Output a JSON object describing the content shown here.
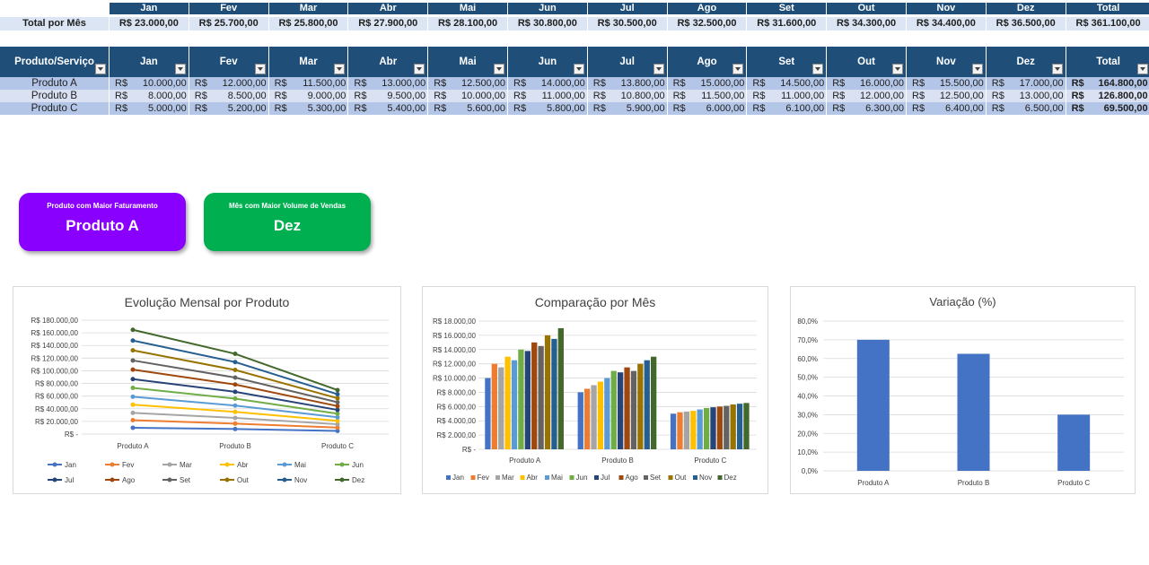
{
  "summary": {
    "label": "Total por Mês",
    "months": [
      "Jan",
      "Fev",
      "Mar",
      "Abr",
      "Mai",
      "Jun",
      "Jul",
      "Ago",
      "Set",
      "Out",
      "Nov",
      "Dez",
      "Total"
    ],
    "values": [
      "R$ 23.000,00",
      "R$ 25.700,00",
      "R$ 25.800,00",
      "R$ 27.900,00",
      "R$ 28.100,00",
      "R$ 30.800,00",
      "R$ 30.500,00",
      "R$ 32.500,00",
      "R$ 31.600,00",
      "R$ 34.300,00",
      "R$ 34.400,00",
      "R$ 36.500,00",
      "R$ 361.100,00"
    ]
  },
  "table": {
    "headers": [
      "Produto/Serviço",
      "Jan",
      "Fev",
      "Mar",
      "Abr",
      "Mai",
      "Jun",
      "Jul",
      "Ago",
      "Set",
      "Out",
      "Nov",
      "Dez",
      "Total"
    ],
    "currency": "R$",
    "rows": [
      {
        "product": "Produto A",
        "values": [
          "10.000,00",
          "12.000,00",
          "11.500,00",
          "13.000,00",
          "12.500,00",
          "14.000,00",
          "13.800,00",
          "15.000,00",
          "14.500,00",
          "16.000,00",
          "15.500,00",
          "17.000,00"
        ],
        "total": "164.800,00"
      },
      {
        "product": "Produto B",
        "values": [
          "8.000,00",
          "8.500,00",
          "9.000,00",
          "9.500,00",
          "10.000,00",
          "11.000,00",
          "10.800,00",
          "11.500,00",
          "11.000,00",
          "12.000,00",
          "12.500,00",
          "13.000,00"
        ],
        "total": "126.800,00"
      },
      {
        "product": "Produto C",
        "values": [
          "5.000,00",
          "5.200,00",
          "5.300,00",
          "5.400,00",
          "5.600,00",
          "5.800,00",
          "5.900,00",
          "6.000,00",
          "6.100,00",
          "6.300,00",
          "6.400,00",
          "6.500,00"
        ],
        "total": "69.500,00"
      }
    ]
  },
  "kpis": {
    "top_product": {
      "title": "Produto com Maior Faturamento",
      "value": "Produto A",
      "color": "#8a00ff"
    },
    "top_month": {
      "title": "Mês com Maior Volume de Vendas",
      "value": "Dez",
      "color": "#00b050"
    }
  },
  "chart_data": [
    {
      "type": "line",
      "title": "Evolução Mensal por Produto",
      "categories": [
        "Produto A",
        "Produto B",
        "Produto C"
      ],
      "y_ticks": [
        "R$ -",
        "R$ 20.000,00",
        "R$ 40.000,00",
        "R$ 60.000,00",
        "R$ 80.000,00",
        "R$ 100.000,00",
        "R$ 120.000,00",
        "R$ 140.000,00",
        "R$ 160.000,00",
        "R$ 180.000,00"
      ],
      "ylim": [
        0,
        180000
      ],
      "stacked": true,
      "legend_position": "bottom",
      "series": [
        {
          "name": "Jan",
          "values": [
            10000,
            8000,
            5000
          ],
          "color": "#4472c4"
        },
        {
          "name": "Fev",
          "values": [
            12000,
            8500,
            5200
          ],
          "color": "#ed7d31"
        },
        {
          "name": "Mar",
          "values": [
            11500,
            9000,
            5300
          ],
          "color": "#a5a5a5"
        },
        {
          "name": "Abr",
          "values": [
            13000,
            9500,
            5400
          ],
          "color": "#ffc000"
        },
        {
          "name": "Mai",
          "values": [
            12500,
            10000,
            5600
          ],
          "color": "#5b9bd5"
        },
        {
          "name": "Jun",
          "values": [
            14000,
            11000,
            5800
          ],
          "color": "#70ad47"
        },
        {
          "name": "Jul",
          "values": [
            13800,
            10800,
            5900
          ],
          "color": "#264478"
        },
        {
          "name": "Ago",
          "values": [
            15000,
            11500,
            6000
          ],
          "color": "#9e480e"
        },
        {
          "name": "Set",
          "values": [
            14500,
            11000,
            6100
          ],
          "color": "#636363"
        },
        {
          "name": "Out",
          "values": [
            16000,
            12000,
            6300
          ],
          "color": "#997300"
        },
        {
          "name": "Nov",
          "values": [
            15500,
            12500,
            6400
          ],
          "color": "#255e91"
        },
        {
          "name": "Dez",
          "values": [
            17000,
            13000,
            6500
          ],
          "color": "#43682b"
        }
      ]
    },
    {
      "type": "bar",
      "title": "Comparação por Mês",
      "categories": [
        "Produto A",
        "Produto B",
        "Produto C"
      ],
      "y_ticks": [
        "R$ -",
        "R$ 2.000,00",
        "R$ 4.000,00",
        "R$ 6.000,00",
        "R$ 8.000,00",
        "R$ 10.000,00",
        "R$ 12.000,00",
        "R$ 14.000,00",
        "R$ 16.000,00",
        "R$ 18.000,00"
      ],
      "ylim": [
        0,
        18000
      ],
      "legend_position": "bottom",
      "series_ref": "same as Evolução Mensal por Produto series (Jan–Dez)"
    },
    {
      "type": "bar",
      "title": "Variação (%)",
      "categories": [
        "Produto A",
        "Produto B",
        "Produto C"
      ],
      "values": [
        70,
        62.5,
        30
      ],
      "y_ticks": [
        "0,0%",
        "10,0%",
        "20,0%",
        "30,0%",
        "40,0%",
        "50,0%",
        "60,0%",
        "70,0%",
        "80,0%"
      ],
      "ylim": [
        0,
        80
      ],
      "color": "#4472c4"
    }
  ]
}
